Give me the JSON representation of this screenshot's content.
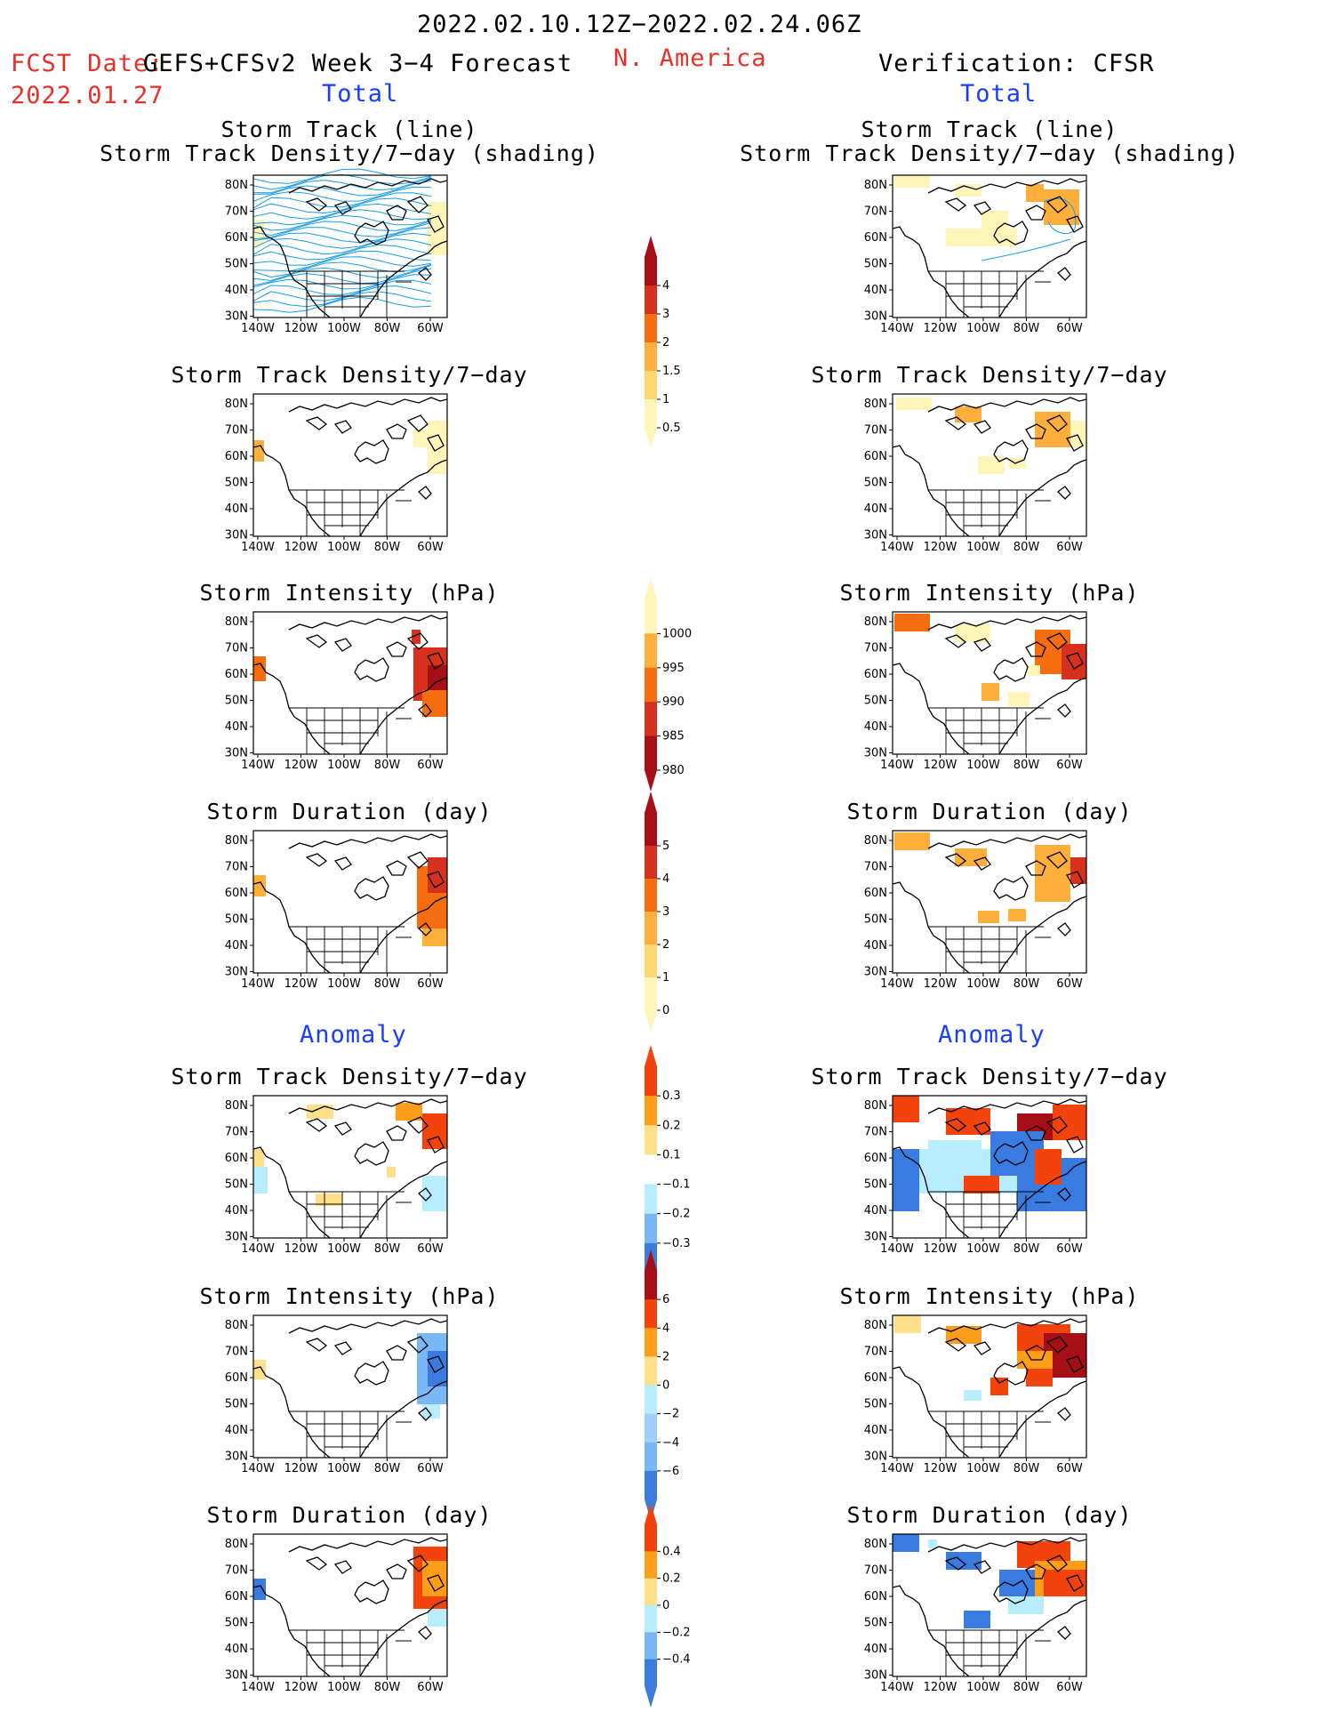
{
  "header": {
    "date_range": "2022.02.10.12Z−2022.02.24.06Z",
    "fcst_date_label": "FCST Date:",
    "fcst_title": "GEFS+CFSv2 Week 3−4 Forecast",
    "fcst_date": "2022.01.27",
    "region": "N. America",
    "verification": "Verification: CFSR",
    "total_left": "Total",
    "total_right": "Total",
    "anomaly_left": "Anomaly",
    "anomaly_right": "Anomaly"
  },
  "axes": {
    "lat_labels": [
      "80N",
      "70N",
      "60N",
      "50N",
      "40N",
      "30N"
    ],
    "lon_labels": [
      "140W",
      "120W",
      "100W",
      "80W",
      "60W"
    ]
  },
  "panels": [
    {
      "id": "fc-track",
      "title1": "Storm Track (line)",
      "title2": "Storm Track Density/7−day (shading)"
    },
    {
      "id": "vf-track",
      "title1": "Storm Track (line)",
      "title2": "Storm Track Density/7−day (shading)"
    },
    {
      "id": "fc-density",
      "title1": "Storm Track Density/7−day"
    },
    {
      "id": "vf-density",
      "title1": "Storm Track Density/7−day"
    },
    {
      "id": "fc-intensity",
      "title1": "Storm Intensity (hPa)"
    },
    {
      "id": "vf-intensity",
      "title1": "Storm Intensity (hPa)"
    },
    {
      "id": "fc-duration",
      "title1": "Storm Duration (day)"
    },
    {
      "id": "vf-duration",
      "title1": "Storm Duration (day)"
    },
    {
      "id": "fc-anom-density",
      "title1": "Storm Track Density/7−day"
    },
    {
      "id": "vf-anom-density",
      "title1": "Storm Track Density/7−day"
    },
    {
      "id": "fc-anom-intensity",
      "title1": "Storm Intensity (hPa)"
    },
    {
      "id": "vf-anom-intensity",
      "title1": "Storm Intensity (hPa)"
    },
    {
      "id": "fc-anom-duration",
      "title1": "Storm Duration (day)"
    },
    {
      "id": "vf-anom-duration",
      "title1": "Storm Duration (day)"
    }
  ],
  "colorbars": [
    {
      "id": "density-total",
      "labels": [
        "4",
        "3",
        "2",
        "1.5",
        "1",
        "0.5"
      ],
      "colors": [
        "#a50f15",
        "#d7301f",
        "#f46d0f",
        "#fdae3b",
        "#fdd870",
        "#fff5b8"
      ]
    },
    {
      "id": "intensity-total",
      "labels": [
        "1000",
        "995",
        "990",
        "985",
        "980"
      ],
      "colors": [
        "#fff5b8",
        "#fdae3b",
        "#f46d0f",
        "#d7301f",
        "#a50f15"
      ]
    },
    {
      "id": "duration-total",
      "labels": [
        "5",
        "4",
        "3",
        "2",
        "1",
        "0"
      ],
      "colors": [
        "#a50f15",
        "#d7301f",
        "#f46d0f",
        "#fdae3b",
        "#fdd870",
        "#fff5b8"
      ]
    },
    {
      "id": "density-anom",
      "labels": [
        "0.3",
        "0.2",
        "0.1",
        "−0.1",
        "−0.2",
        "−0.3"
      ],
      "colors": [
        "#f2430c",
        "#fd9d1a",
        "#ffe08a",
        "#ffffff",
        "#b8ecff",
        "#7ab8f5",
        "#3a7be0"
      ]
    },
    {
      "id": "intensity-anom",
      "labels": [
        "6",
        "4",
        "2",
        "0",
        "−2",
        "−4",
        "−6"
      ],
      "colors": [
        "#a50f15",
        "#f2430c",
        "#fd9d1a",
        "#ffe08a",
        "#b8ecff",
        "#a0d0fa",
        "#7ab8f5",
        "#3a7be0"
      ]
    },
    {
      "id": "duration-anom",
      "labels": [
        "0.4",
        "0.2",
        "0",
        "−0.2",
        "−0.4"
      ],
      "colors": [
        "#f2430c",
        "#fd9d1a",
        "#ffe08a",
        "#b8ecff",
        "#7ab8f5",
        "#3a7be0"
      ]
    }
  ],
  "colors": {
    "title_red": "#e8302a",
    "title_blue": "#1a3cff",
    "track_line": "#1a9be8"
  }
}
